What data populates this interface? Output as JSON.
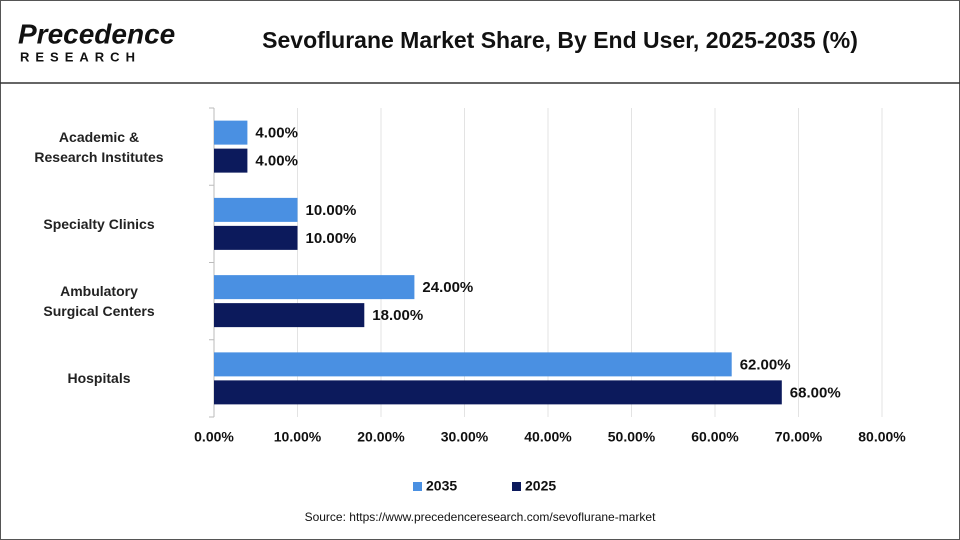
{
  "logo": {
    "name": "Precedence",
    "tagline": "RESEARCH"
  },
  "chart_data": {
    "type": "hbar",
    "title": "Sevoflurane Market Share, By End User, 2025-2035 (%)",
    "source": "Source: https://www.precedenceresearch.com/sevoflurane-market",
    "categories": [
      "Academic &\nResearch Institutes",
      "Specialty Clinics",
      "Ambulatory\nSurgical Centers",
      "Hospitals"
    ],
    "series": [
      {
        "name": "2035",
        "color": "#4a90e2",
        "values": [
          4,
          10,
          24,
          62
        ],
        "value_labels": [
          "4.00%",
          "10.00%",
          "24.00%",
          "62.00%"
        ]
      },
      {
        "name": "2025",
        "color": "#0c1a5c",
        "values": [
          4,
          10,
          18,
          68
        ],
        "value_labels": [
          "4.00%",
          "10.00%",
          "18.00%",
          "68.00%"
        ]
      }
    ],
    "xlim": [
      0,
      80
    ],
    "xticks": [
      {
        "value": 0,
        "label": "0.00%"
      },
      {
        "value": 10,
        "label": "10.00%"
      },
      {
        "value": 20,
        "label": "20.00%"
      },
      {
        "value": 30,
        "label": "30.00%"
      },
      {
        "value": 40,
        "label": "40.00%"
      },
      {
        "value": 50,
        "label": "50.00%"
      },
      {
        "value": 60,
        "label": "60.00%"
      },
      {
        "value": 70,
        "label": "70.00%"
      },
      {
        "value": 80,
        "label": "80.00%"
      }
    ],
    "grid": true,
    "legend": "bottom"
  }
}
